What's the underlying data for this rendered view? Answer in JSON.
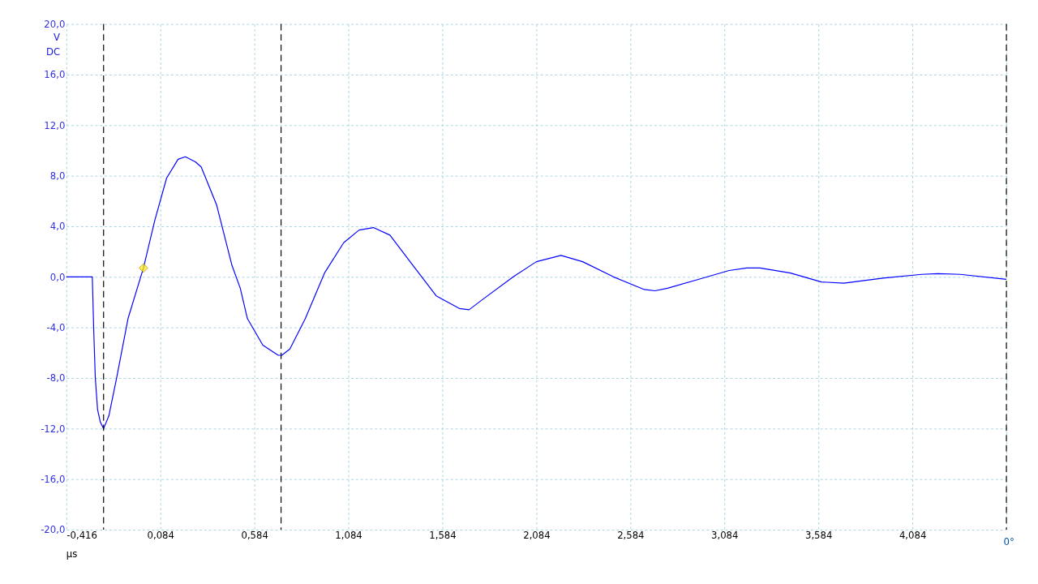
{
  "chart_data": {
    "type": "line",
    "xlabel": "µs",
    "ylabel": "V DC",
    "xlim": [
      -0.416,
      4.584
    ],
    "ylim": [
      -20,
      20
    ],
    "xticks": [
      {
        "value": -0.416,
        "label": "-0,416"
      },
      {
        "value": 0.084,
        "label": "0,084"
      },
      {
        "value": 0.584,
        "label": "0,584"
      },
      {
        "value": 1.084,
        "label": "1,084"
      },
      {
        "value": 1.584,
        "label": "1,584"
      },
      {
        "value": 2.084,
        "label": "2,084"
      },
      {
        "value": 2.584,
        "label": "2,584"
      },
      {
        "value": 3.084,
        "label": "3,084"
      },
      {
        "value": 3.584,
        "label": "3,584"
      },
      {
        "value": 4.084,
        "label": "4,084"
      },
      {
        "value": 4.584,
        "label": null
      }
    ],
    "yticks": [
      {
        "value": -20,
        "label": "-20,0"
      },
      {
        "value": -16,
        "label": "-16,0"
      },
      {
        "value": -12,
        "label": "-12,0"
      },
      {
        "value": -8,
        "label": "-8,0"
      },
      {
        "value": -4,
        "label": "-4,0"
      },
      {
        "value": 0,
        "label": "0,0"
      },
      {
        "value": 4,
        "label": "4,0"
      },
      {
        "value": 8,
        "label": "8,0"
      },
      {
        "value": 12,
        "label": "12,0"
      },
      {
        "value": 16,
        "label": "16,0"
      },
      {
        "value": 20,
        "label": "20,0"
      }
    ],
    "grid": true,
    "series": [
      {
        "color": "#0000ff",
        "marker": "none",
        "line_style": "solid",
        "x": [
          -0.416,
          -0.278,
          -0.27,
          -0.262,
          -0.25,
          -0.235,
          -0.218,
          -0.19,
          -0.15,
          -0.088,
          -0.006,
          0.055,
          0.117,
          0.178,
          0.217,
          0.27,
          0.301,
          0.383,
          0.465,
          0.509,
          0.547,
          0.629,
          0.711,
          0.73,
          0.773,
          0.855,
          0.957,
          1.059,
          1.141,
          1.217,
          1.305,
          1.428,
          1.551,
          1.674,
          1.726,
          1.797,
          1.961,
          2.084,
          2.215,
          2.33,
          2.494,
          2.658,
          2.715,
          2.781,
          2.945,
          3.109,
          3.203,
          3.273,
          3.436,
          3.6,
          3.719,
          3.928,
          4.133,
          4.22,
          4.338,
          4.584
        ],
        "values": [
          0,
          0,
          -4.4,
          -8.0,
          -10.5,
          -11.5,
          -12.0,
          -11.0,
          -8.1,
          -3.3,
          0.7,
          4.5,
          7.8,
          9.3,
          9.5,
          9.1,
          8.7,
          5.7,
          0.9,
          -0.9,
          -3.3,
          -5.4,
          -6.2,
          -6.2,
          -5.7,
          -3.3,
          0.3,
          2.7,
          3.7,
          3.9,
          3.3,
          0.9,
          -1.5,
          -2.5,
          -2.6,
          -1.8,
          0,
          1.2,
          1.7,
          1.2,
          0,
          -1.0,
          -1.1,
          -0.9,
          -0.2,
          0.5,
          0.7,
          0.7,
          0.3,
          -0.4,
          -0.5,
          -0.1,
          0.2,
          0.25,
          0.2,
          -0.2
        ]
      },
      {
        "type": "scatter",
        "color": "#ffee00",
        "marker": "diamond",
        "x": [
          -0.006
        ],
        "values": [
          0.7
        ]
      }
    ],
    "ref_lines": [
      {
        "axis": "x",
        "value": -0.218,
        "color": "#000000",
        "line_style": "dashed"
      },
      {
        "axis": "x",
        "value": 0.726,
        "color": "#000000",
        "line_style": "dashed"
      },
      {
        "axis": "x",
        "value": 4.584,
        "color": "#000000",
        "line_style": "dashed"
      }
    ],
    "annotations": [
      "0°"
    ]
  }
}
